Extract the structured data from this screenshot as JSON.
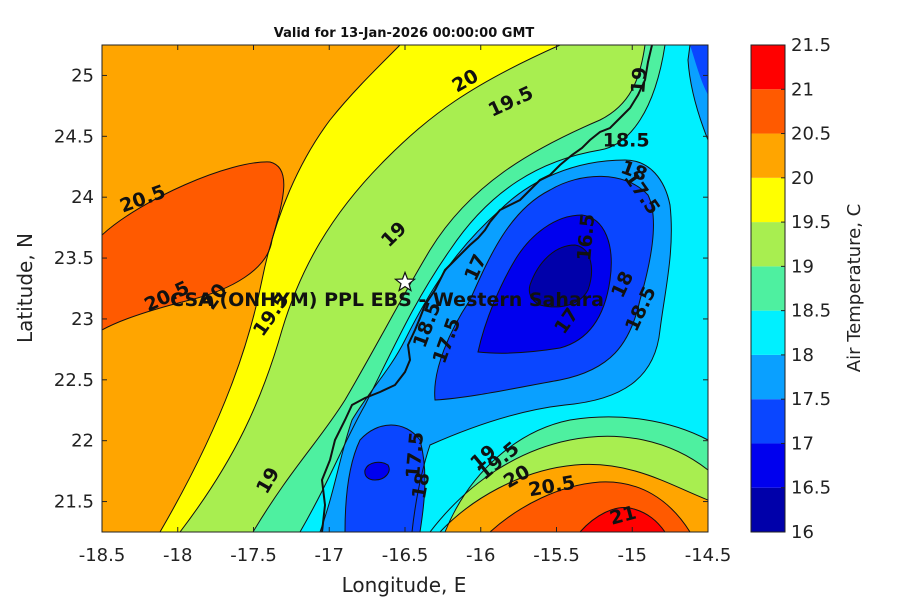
{
  "chart_data": {
    "type": "heatmap",
    "title": "Valid for 13-Jan-2026 00:00:00 GMT",
    "xlabel": "Longitude, E",
    "ylabel": "Latitude, N",
    "xlim": [
      -18.5,
      -14.5
    ],
    "ylim": [
      21.25,
      25.25
    ],
    "x_ticks": [
      -18.5,
      -18,
      -17.5,
      -17,
      -16.5,
      -16,
      -15.5,
      -15,
      -14.5
    ],
    "x_tick_labels": [
      "-18.5",
      "-18",
      "-17.5",
      "-17",
      "-16.5",
      "-16",
      "-15.5",
      "-15",
      "-14.5"
    ],
    "y_ticks": [
      21.5,
      22,
      22.5,
      23,
      23.5,
      24,
      24.5,
      25
    ],
    "y_tick_labels": [
      "21.5",
      "22",
      "22.5",
      "23",
      "23.5",
      "24",
      "24.5",
      "25"
    ],
    "colorbar": {
      "label": "Air Temperature, C",
      "ticks": [
        16,
        16.5,
        17,
        17.5,
        18,
        18.5,
        19,
        19.5,
        20,
        20.5,
        21,
        21.5
      ],
      "tick_labels": [
        "16",
        "16.5",
        "17",
        "17.5",
        "18",
        "18.5",
        "19",
        "19.5",
        "20",
        "20.5",
        "21",
        "21.5"
      ],
      "colors": [
        "#0000aa",
        "#0000ee",
        "#0a46ff",
        "#0aa0ff",
        "#00f0ff",
        "#4ef0a0",
        "#a8ee50",
        "#ffff00",
        "#ffa500",
        "#ff5a00",
        "#ff0000",
        "#aa0000"
      ]
    },
    "contour_labels": [
      {
        "text": "20.5",
        "lon": -18.23,
        "lat": 23.98,
        "angle": -20
      },
      {
        "text": "20.5",
        "lon": -18.07,
        "lat": 23.18,
        "angle": -25
      },
      {
        "text": "20",
        "lon": -17.75,
        "lat": 23.18,
        "angle": -55
      },
      {
        "text": "19.5",
        "lon": -17.38,
        "lat": 23.03,
        "angle": -55
      },
      {
        "text": "20",
        "lon": -16.1,
        "lat": 24.95,
        "angle": -30
      },
      {
        "text": "19.5",
        "lon": -15.8,
        "lat": 24.78,
        "angle": -25
      },
      {
        "text": "19",
        "lon": -16.57,
        "lat": 23.69,
        "angle": -45
      },
      {
        "text": "19",
        "lon": -14.95,
        "lat": 24.96,
        "angle": -85
      },
      {
        "text": "18.5",
        "lon": -15.04,
        "lat": 24.46,
        "angle": 0
      },
      {
        "text": "18",
        "lon": -14.99,
        "lat": 24.21,
        "angle": 20
      },
      {
        "text": "17.5",
        "lon": -14.94,
        "lat": 24.03,
        "angle": 55
      },
      {
        "text": "16.5",
        "lon": -15.3,
        "lat": 23.67,
        "angle": -85
      },
      {
        "text": "17",
        "lon": -16.03,
        "lat": 23.42,
        "angle": -65
      },
      {
        "text": "17",
        "lon": -15.43,
        "lat": 22.98,
        "angle": -55
      },
      {
        "text": "18",
        "lon": -15.06,
        "lat": 23.28,
        "angle": -65
      },
      {
        "text": "18.5",
        "lon": -14.94,
        "lat": 23.08,
        "angle": -65
      },
      {
        "text": "18.5",
        "lon": -16.35,
        "lat": 22.95,
        "angle": -70
      },
      {
        "text": "17.5",
        "lon": -16.22,
        "lat": 22.82,
        "angle": -70
      },
      {
        "text": "17.5",
        "lon": -16.43,
        "lat": 21.88,
        "angle": -85
      },
      {
        "text": "18",
        "lon": -16.39,
        "lat": 21.63,
        "angle": -80
      },
      {
        "text": "19",
        "lon": -15.98,
        "lat": 21.86,
        "angle": -40
      },
      {
        "text": "19.5",
        "lon": -15.88,
        "lat": 21.83,
        "angle": -40
      },
      {
        "text": "20",
        "lon": -15.76,
        "lat": 21.7,
        "angle": -30
      },
      {
        "text": "20.5",
        "lon": -15.53,
        "lat": 21.62,
        "angle": -10
      },
      {
        "text": "21",
        "lon": -15.06,
        "lat": 21.38,
        "angle": -15
      },
      {
        "text": "19",
        "lon": -17.4,
        "lat": 21.67,
        "angle": -60
      }
    ],
    "station": {
      "name": "CSA (ONHYM) PPL EBS - Western Sahara",
      "lon": -16.5,
      "lat": 23.3
    }
  }
}
